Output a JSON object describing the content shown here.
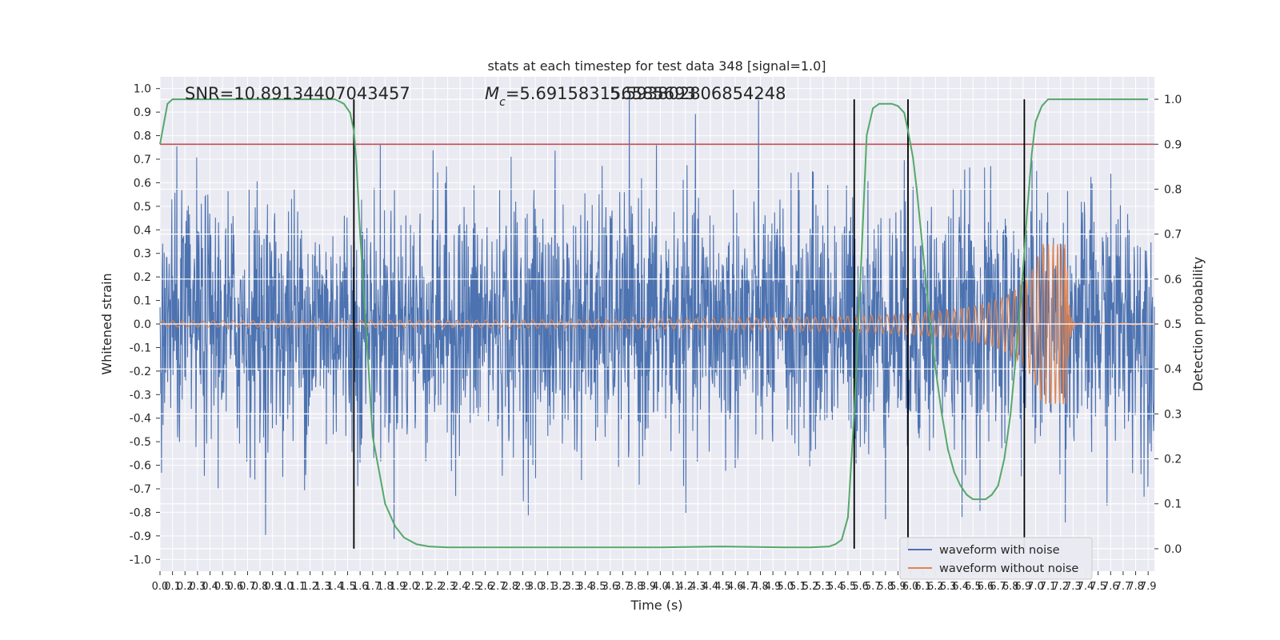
{
  "chart_data": {
    "type": "line",
    "title": "stats at each timestep for test data 348 [signal=1.0]",
    "xlabel": "Time (s)",
    "ylabel": "Whitened strain",
    "ylabel_right": "Detection probability",
    "xlim": [
      0.0,
      7.95
    ],
    "ylim": [
      -1.05,
      1.05
    ],
    "ylim_right": [
      -0.05,
      1.05
    ],
    "x_tick_labels": [
      "0.0",
      "0.1",
      "0.2",
      "0.3",
      "0.4",
      "0.5",
      "0.6",
      "0.7",
      "0.8",
      "0.9",
      "1.0",
      "1.1",
      "1.2",
      "1.3",
      "1.4",
      "1.5",
      "1.6",
      "1.7",
      "1.8",
      "1.9",
      "2.0",
      "2.1",
      "2.2",
      "2.3",
      "2.4",
      "2.5",
      "2.6",
      "2.7",
      "2.8",
      "2.9",
      "3.0",
      "3.1",
      "3.2",
      "3.3",
      "3.4",
      "3.5",
      "3.6",
      "3.7",
      "3.8",
      "3.9",
      "4.0",
      "4.1",
      "4.2",
      "4.3",
      "4.4",
      "4.5",
      "4.6",
      "4.7",
      "4.8",
      "4.9",
      "5.0",
      "5.1",
      "5.2",
      "5.3",
      "5.4",
      "5.5",
      "5.6",
      "5.7",
      "5.8",
      "5.9",
      "6.0",
      "6.1",
      "6.2",
      "6.3",
      "6.4",
      "6.5",
      "6.6",
      "6.7",
      "6.8",
      "6.9",
      "7.0",
      "7.1",
      "7.2",
      "7.3",
      "7.4",
      "7.5",
      "7.6",
      "7.7",
      "7.8",
      "7.9"
    ],
    "y_tick_labels": [
      "1.0",
      "0.9",
      "0.8",
      "0.7",
      "0.6",
      "0.5",
      "0.4",
      "0.3",
      "0.2",
      "0.1",
      "0.0",
      "-0.1",
      "-0.2",
      "-0.3",
      "-0.4",
      "-0.5",
      "-0.6",
      "-0.7",
      "-0.8",
      "-0.9",
      "-1.0"
    ],
    "y_right_tick_labels": [
      "1.0",
      "0.9",
      "0.8",
      "0.7",
      "0.6",
      "0.5",
      "0.4",
      "0.3",
      "0.2",
      "0.1",
      "0.0"
    ],
    "annotations": {
      "snr": "SNR=10.89134407043457",
      "mc_symbol": "M",
      "mc_sub": "c",
      "mc_value": "=5.691583156585693",
      "mc_overlap": "5.593802806854248"
    },
    "threshold": {
      "value": 0.9,
      "axis": "right",
      "color": "#c44e52"
    },
    "vertical_lines": [
      1.55,
      5.55,
      5.98,
      6.91
    ],
    "series": [
      {
        "name": "waveform with noise",
        "color": "#4c72b0",
        "amplitude_range": [
          -0.95,
          1.0
        ]
      },
      {
        "name": "waveform without noise",
        "color": "#dd8452",
        "chirp_start": 0.01,
        "chirp_peak": 0.34,
        "merger_time": 7.25
      },
      {
        "name": "Detection probability",
        "axis": "right",
        "color": "#55a868",
        "x": [
          0.0,
          0.06,
          0.1,
          0.2,
          0.4,
          0.8,
          1.2,
          1.4,
          1.47,
          1.52,
          1.55,
          1.57,
          1.6,
          1.65,
          1.7,
          1.8,
          1.88,
          1.95,
          2.05,
          2.15,
          2.3,
          2.6,
          3.0,
          3.5,
          4.0,
          4.5,
          5.0,
          5.2,
          5.35,
          5.4,
          5.45,
          5.5,
          5.55,
          5.6,
          5.65,
          5.7,
          5.75,
          5.8,
          5.85,
          5.9,
          5.95,
          5.98,
          6.02,
          6.05,
          6.1,
          6.15,
          6.2,
          6.25,
          6.3,
          6.35,
          6.4,
          6.45,
          6.5,
          6.55,
          6.6,
          6.65,
          6.7,
          6.75,
          6.8,
          6.85,
          6.9,
          6.93,
          6.97,
          7.0,
          7.05,
          7.1,
          7.2,
          7.5,
          7.9
        ],
        "y": [
          0.9,
          0.99,
          1.0,
          1.0,
          1.0,
          1.0,
          1.0,
          1.0,
          0.99,
          0.97,
          0.93,
          0.86,
          0.7,
          0.48,
          0.25,
          0.1,
          0.05,
          0.025,
          0.01,
          0.005,
          0.003,
          0.003,
          0.003,
          0.003,
          0.003,
          0.005,
          0.003,
          0.003,
          0.005,
          0.01,
          0.02,
          0.07,
          0.3,
          0.6,
          0.92,
          0.98,
          0.99,
          0.99,
          0.99,
          0.985,
          0.97,
          0.93,
          0.87,
          0.8,
          0.66,
          0.52,
          0.4,
          0.3,
          0.22,
          0.17,
          0.14,
          0.12,
          0.11,
          0.11,
          0.11,
          0.12,
          0.14,
          0.2,
          0.3,
          0.45,
          0.62,
          0.74,
          0.88,
          0.95,
          0.985,
          1.0,
          1.0,
          1.0,
          1.0
        ]
      }
    ],
    "legend": {
      "placement": "lower-right",
      "entries": [
        "waveform with noise",
        "waveform without noise"
      ]
    }
  },
  "colors": {
    "background": "#eaeaf2",
    "grid": "#ffffff",
    "noise": "#4c72b0",
    "clean": "#dd8452",
    "probability": "#55a868",
    "threshold": "#c44e52",
    "vlines": "#000000"
  }
}
